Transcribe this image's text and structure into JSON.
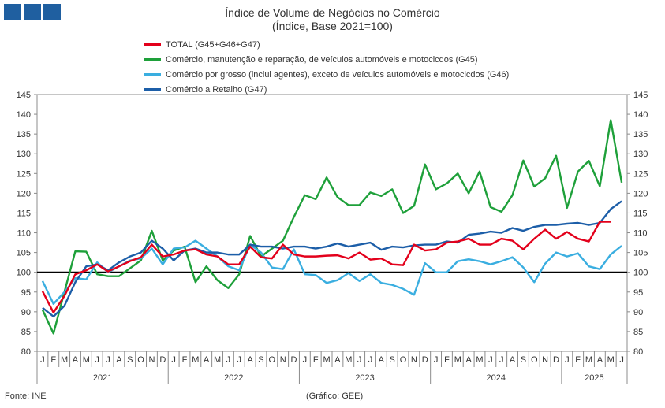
{
  "header": {
    "title_line1": "Índice de Volume de Negócios no Comércio",
    "title_line2": "(Índice, Base 2021=100)"
  },
  "footer": {
    "source": "Fonte: INE",
    "graph_credit": "(Gráfico: GEE)"
  },
  "chart_data": {
    "type": "line",
    "title": "Índice de Volume de Negócios no Comércio",
    "subtitle": "(Índice, Base 2021=100)",
    "x_month_labels": [
      "J",
      "F",
      "M",
      "A",
      "M",
      "J",
      "J",
      "A",
      "S",
      "O",
      "N",
      "D",
      "J",
      "F",
      "M",
      "A",
      "M",
      "J",
      "J",
      "A",
      "S",
      "O",
      "N",
      "D",
      "J",
      "F",
      "M",
      "A",
      "M",
      "J",
      "J",
      "A",
      "S",
      "O",
      "N",
      "D",
      "J",
      "F",
      "M",
      "A",
      "M",
      "J",
      "J",
      "A",
      "S",
      "O",
      "N",
      "D",
      "J",
      "F",
      "M",
      "A",
      "M",
      "J"
    ],
    "x_year_labels": [
      "2021",
      "2022",
      "2023",
      "2024",
      "2025"
    ],
    "year_month_counts": [
      12,
      12,
      12,
      12,
      6
    ],
    "ylim": [
      80,
      145
    ],
    "y_ticks": [
      80,
      85,
      90,
      95,
      100,
      105,
      110,
      115,
      120,
      125,
      130,
      135,
      140,
      145
    ],
    "reference_line": 100,
    "grid": false,
    "legend_position": "top-left",
    "series": [
      {
        "name": "TOTAL (G45+G46+G47)",
        "color": "#e3001b",
        "values": [
          95.2,
          89.8,
          94.0,
          99.5,
          100.5,
          102.0,
          100.2,
          101.5,
          102.8,
          103.8,
          107.0,
          104.0,
          104.5,
          105.5,
          105.8,
          104.5,
          104.0,
          102.0,
          102.0,
          106.5,
          103.8,
          103.5,
          107.0,
          104.5,
          104.0,
          104.0,
          104.2,
          104.3,
          103.5,
          105.0,
          103.2,
          103.5,
          102.0,
          101.8,
          107.0,
          105.5,
          105.8,
          107.5,
          107.8,
          108.5,
          107.0,
          107.0,
          108.5,
          108.0,
          105.8,
          108.5,
          110.8,
          108.5,
          110.2,
          108.5,
          107.8,
          112.8,
          112.8,
          null
        ]
      },
      {
        "name": "Comércio, manutenção e reparação, de veículos automóveis e motocicdos (G45)",
        "color": "#1ea03a",
        "values": [
          90.5,
          84.5,
          95.0,
          105.3,
          105.2,
          99.5,
          99.0,
          99.0,
          101.0,
          103.0,
          110.5,
          103.0,
          105.5,
          106.5,
          97.5,
          101.5,
          98.0,
          96.0,
          99.5,
          109.2,
          104.0,
          106.0,
          108.0,
          114.0,
          119.5,
          118.5,
          124.0,
          119.0,
          117.0,
          117.0,
          120.2,
          119.3,
          121.0,
          115.0,
          116.8,
          127.3,
          121.0,
          122.5,
          125.0,
          120.0,
          125.5,
          116.5,
          115.3,
          119.5,
          128.3,
          121.7,
          123.8,
          129.5,
          116.3,
          125.5,
          128.2,
          121.8,
          138.5,
          122.7
        ]
      },
      {
        "name": "Comércio por grosso (inclui agentes), exceto de veículos automóveis e motocicdos (G46)",
        "color": "#3aaee0",
        "values": [
          97.8,
          92.0,
          95.0,
          98.5,
          98.2,
          102.5,
          100.0,
          101.5,
          103.0,
          103.5,
          106.0,
          102.0,
          106.0,
          106.3,
          108.0,
          106.0,
          104.0,
          101.5,
          100.5,
          107.0,
          105.0,
          101.2,
          100.8,
          105.8,
          99.5,
          99.3,
          97.3,
          98.0,
          99.8,
          97.8,
          99.5,
          97.3,
          96.8,
          95.8,
          94.3,
          102.3,
          100.0,
          100.0,
          102.8,
          103.3,
          102.8,
          102.0,
          102.8,
          103.8,
          101.2,
          97.5,
          102.2,
          105.0,
          104.0,
          104.8,
          101.5,
          100.8,
          104.5,
          106.7
        ]
      },
      {
        "name": "Comércio a Retalho (G47)",
        "color": "#1c5ea8",
        "values": [
          91.0,
          88.8,
          91.5,
          97.5,
          101.5,
          102.0,
          100.5,
          102.5,
          104.0,
          105.0,
          108.0,
          106.0,
          103.0,
          105.5,
          106.0,
          105.0,
          105.0,
          104.5,
          104.5,
          107.0,
          106.5,
          106.5,
          106.0,
          106.5,
          106.5,
          106.0,
          106.5,
          107.3,
          106.5,
          107.0,
          107.5,
          105.7,
          106.5,
          106.3,
          106.8,
          107.0,
          107.0,
          107.8,
          107.5,
          109.5,
          109.8,
          110.3,
          110.0,
          111.2,
          110.5,
          111.5,
          112.0,
          112.0,
          112.3,
          112.5,
          112.0,
          112.5,
          116.0,
          118.0
        ]
      }
    ]
  }
}
